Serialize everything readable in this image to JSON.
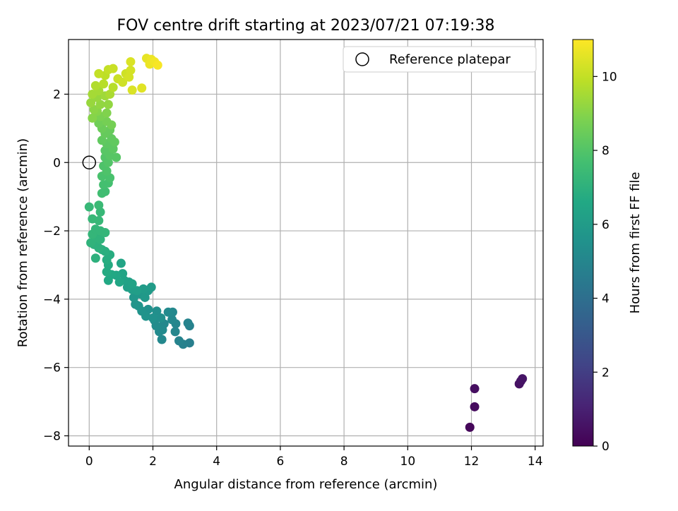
{
  "chart_data": {
    "type": "scatter",
    "title": "FOV centre drift starting at 2023/07/21 07:19:38",
    "xlabel": "Angular distance from reference (arcmin)",
    "ylabel": "Rotation from reference (arcmin)",
    "xlim": [
      -0.65,
      14.25
    ],
    "ylim": [
      -8.3,
      3.6
    ],
    "xticks": [
      0,
      2,
      4,
      6,
      8,
      10,
      12,
      14
    ],
    "yticks": [
      -8,
      -6,
      -4,
      -2,
      0,
      2
    ],
    "grid": true,
    "legend": {
      "position": "upper right",
      "entries": [
        "Reference platepar"
      ]
    },
    "reference_point": {
      "x": 0,
      "y": 0
    },
    "colorbar": {
      "label": "Hours from first FF file",
      "colormap": "viridis",
      "range": [
        0,
        11
      ],
      "ticks": [
        0,
        2,
        4,
        6,
        8,
        10
      ]
    },
    "points": [
      {
        "x": 11.95,
        "y": -7.75,
        "h": 0.2
      },
      {
        "x": 12.1,
        "y": -7.15,
        "h": 0.3
      },
      {
        "x": 12.1,
        "y": -6.62,
        "h": 0.4
      },
      {
        "x": 13.5,
        "y": -6.48,
        "h": 0.5
      },
      {
        "x": 13.55,
        "y": -6.4,
        "h": 0.55
      },
      {
        "x": 13.6,
        "y": -6.33,
        "h": 0.6
      },
      {
        "x": 3.15,
        "y": -5.28,
        "h": 4.7
      },
      {
        "x": 2.95,
        "y": -5.32,
        "h": 4.8
      },
      {
        "x": 2.82,
        "y": -5.22,
        "h": 4.9
      },
      {
        "x": 3.15,
        "y": -4.78,
        "h": 4.8
      },
      {
        "x": 3.1,
        "y": -4.7,
        "h": 4.9
      },
      {
        "x": 2.7,
        "y": -4.95,
        "h": 5.0
      },
      {
        "x": 2.72,
        "y": -4.72,
        "h": 5.0
      },
      {
        "x": 2.6,
        "y": -4.6,
        "h": 5.1
      },
      {
        "x": 2.62,
        "y": -4.38,
        "h": 5.1
      },
      {
        "x": 2.48,
        "y": -4.38,
        "h": 5.2
      },
      {
        "x": 2.35,
        "y": -4.72,
        "h": 5.1
      },
      {
        "x": 2.3,
        "y": -4.9,
        "h": 5.2
      },
      {
        "x": 2.28,
        "y": -5.18,
        "h": 5.1
      },
      {
        "x": 2.2,
        "y": -4.95,
        "h": 5.2
      },
      {
        "x": 2.1,
        "y": -4.78,
        "h": 5.3
      },
      {
        "x": 2.05,
        "y": -4.62,
        "h": 5.3
      },
      {
        "x": 2.12,
        "y": -4.35,
        "h": 5.4
      },
      {
        "x": 2.25,
        "y": -4.55,
        "h": 5.4
      },
      {
        "x": 2.0,
        "y": -4.55,
        "h": 5.5
      },
      {
        "x": 1.85,
        "y": -4.3,
        "h": 5.5
      },
      {
        "x": 1.78,
        "y": -4.5,
        "h": 5.6
      },
      {
        "x": 1.65,
        "y": -4.35,
        "h": 5.6
      },
      {
        "x": 1.55,
        "y": -4.2,
        "h": 5.7
      },
      {
        "x": 1.45,
        "y": -4.15,
        "h": 5.7
      },
      {
        "x": 1.4,
        "y": -3.95,
        "h": 5.8
      },
      {
        "x": 1.6,
        "y": -3.85,
        "h": 5.8
      },
      {
        "x": 1.75,
        "y": -3.95,
        "h": 5.9
      },
      {
        "x": 1.85,
        "y": -3.75,
        "h": 5.9
      },
      {
        "x": 1.95,
        "y": -3.65,
        "h": 6.0
      },
      {
        "x": 1.7,
        "y": -3.7,
        "h": 6.0
      },
      {
        "x": 1.5,
        "y": -3.75,
        "h": 6.1
      },
      {
        "x": 1.35,
        "y": -3.72,
        "h": 6.1
      },
      {
        "x": 1.2,
        "y": -3.65,
        "h": 6.2
      },
      {
        "x": 1.25,
        "y": -3.5,
        "h": 6.2
      },
      {
        "x": 1.1,
        "y": -3.45,
        "h": 6.3
      },
      {
        "x": 1.35,
        "y": -3.55,
        "h": 6.3
      },
      {
        "x": 1.05,
        "y": -3.25,
        "h": 6.4
      },
      {
        "x": 1.0,
        "y": -2.95,
        "h": 6.4
      },
      {
        "x": 0.95,
        "y": -3.5,
        "h": 6.5
      },
      {
        "x": 0.85,
        "y": -3.3,
        "h": 6.5
      },
      {
        "x": 0.7,
        "y": -3.28,
        "h": 6.6
      },
      {
        "x": 0.6,
        "y": -3.45,
        "h": 6.6
      },
      {
        "x": 0.55,
        "y": -3.2,
        "h": 6.7
      },
      {
        "x": 0.6,
        "y": -3.0,
        "h": 6.7
      },
      {
        "x": 0.55,
        "y": -2.85,
        "h": 6.8
      },
      {
        "x": 0.65,
        "y": -2.7,
        "h": 6.8
      },
      {
        "x": 0.5,
        "y": -2.6,
        "h": 6.9
      },
      {
        "x": 0.4,
        "y": -2.55,
        "h": 6.9
      },
      {
        "x": 0.2,
        "y": -2.8,
        "h": 7.0
      },
      {
        "x": 0.3,
        "y": -2.5,
        "h": 7.0
      },
      {
        "x": 0.15,
        "y": -2.4,
        "h": 7.0
      },
      {
        "x": 0.05,
        "y": -2.35,
        "h": 7.1
      },
      {
        "x": 0.2,
        "y": -2.2,
        "h": 7.1
      },
      {
        "x": 0.35,
        "y": -2.25,
        "h": 7.1
      },
      {
        "x": 0.1,
        "y": -2.1,
        "h": 7.2
      },
      {
        "x": 0.2,
        "y": -1.95,
        "h": 7.2
      },
      {
        "x": 0.35,
        "y": -2.0,
        "h": 7.2
      },
      {
        "x": 0.5,
        "y": -2.05,
        "h": 7.2
      },
      {
        "x": 0.1,
        "y": -1.65,
        "h": 7.3
      },
      {
        "x": 0.3,
        "y": -1.7,
        "h": 7.3
      },
      {
        "x": 0.35,
        "y": -1.45,
        "h": 7.3
      },
      {
        "x": 0.0,
        "y": -1.3,
        "h": 7.3
      },
      {
        "x": 0.3,
        "y": -1.25,
        "h": 7.4
      },
      {
        "x": 0.4,
        "y": -0.9,
        "h": 7.6
      },
      {
        "x": 0.5,
        "y": -0.85,
        "h": 7.6
      },
      {
        "x": 0.6,
        "y": -0.6,
        "h": 7.7
      },
      {
        "x": 0.45,
        "y": -0.65,
        "h": 7.7
      },
      {
        "x": 0.65,
        "y": -0.45,
        "h": 7.8
      },
      {
        "x": 0.4,
        "y": -0.4,
        "h": 7.8
      },
      {
        "x": 0.55,
        "y": -0.25,
        "h": 7.9
      },
      {
        "x": 0.45,
        "y": -0.1,
        "h": 7.9
      },
      {
        "x": 0.6,
        "y": 0.0,
        "h": 8.0
      },
      {
        "x": 0.5,
        "y": 0.15,
        "h": 8.0
      },
      {
        "x": 0.65,
        "y": 0.2,
        "h": 8.1
      },
      {
        "x": 0.5,
        "y": 0.35,
        "h": 8.1
      },
      {
        "x": 0.85,
        "y": 0.15,
        "h": 8.1
      },
      {
        "x": 0.75,
        "y": 0.4,
        "h": 8.2
      },
      {
        "x": 0.55,
        "y": 0.55,
        "h": 8.2
      },
      {
        "x": 0.7,
        "y": 0.7,
        "h": 8.3
      },
      {
        "x": 0.8,
        "y": 0.6,
        "h": 8.3
      },
      {
        "x": 0.4,
        "y": 0.65,
        "h": 8.3
      },
      {
        "x": 0.5,
        "y": 0.85,
        "h": 8.4
      },
      {
        "x": 0.65,
        "y": 0.95,
        "h": 8.4
      },
      {
        "x": 0.4,
        "y": 1.0,
        "h": 8.5
      },
      {
        "x": 0.3,
        "y": 1.15,
        "h": 8.6
      },
      {
        "x": 0.55,
        "y": 1.2,
        "h": 8.7
      },
      {
        "x": 0.7,
        "y": 1.1,
        "h": 8.7
      },
      {
        "x": 0.35,
        "y": 1.35,
        "h": 8.8
      },
      {
        "x": 0.55,
        "y": 1.45,
        "h": 8.9
      },
      {
        "x": 0.25,
        "y": 1.5,
        "h": 9.0
      },
      {
        "x": 0.1,
        "y": 1.3,
        "h": 9.0
      },
      {
        "x": 0.15,
        "y": 1.55,
        "h": 9.1
      },
      {
        "x": 0.35,
        "y": 1.7,
        "h": 9.2
      },
      {
        "x": 0.6,
        "y": 1.7,
        "h": 9.2
      },
      {
        "x": 0.05,
        "y": 1.75,
        "h": 9.3
      },
      {
        "x": 0.25,
        "y": 1.9,
        "h": 9.3
      },
      {
        "x": 0.5,
        "y": 1.95,
        "h": 9.4
      },
      {
        "x": 0.1,
        "y": 2.0,
        "h": 9.5
      },
      {
        "x": 0.3,
        "y": 2.1,
        "h": 9.5
      },
      {
        "x": 0.65,
        "y": 2.0,
        "h": 9.6
      },
      {
        "x": 0.2,
        "y": 2.25,
        "h": 9.7
      },
      {
        "x": 0.45,
        "y": 2.3,
        "h": 9.8
      },
      {
        "x": 0.75,
        "y": 2.2,
        "h": 9.8
      },
      {
        "x": 0.5,
        "y": 2.55,
        "h": 9.9
      },
      {
        "x": 0.3,
        "y": 2.6,
        "h": 10.0
      },
      {
        "x": 0.6,
        "y": 2.72,
        "h": 10.0
      },
      {
        "x": 0.75,
        "y": 2.75,
        "h": 10.1
      },
      {
        "x": 0.9,
        "y": 2.45,
        "h": 10.1
      },
      {
        "x": 1.05,
        "y": 2.35,
        "h": 10.2
      },
      {
        "x": 1.15,
        "y": 2.6,
        "h": 10.2
      },
      {
        "x": 1.25,
        "y": 2.5,
        "h": 10.3
      },
      {
        "x": 1.3,
        "y": 2.7,
        "h": 10.3
      },
      {
        "x": 1.3,
        "y": 2.95,
        "h": 10.4
      },
      {
        "x": 1.35,
        "y": 2.12,
        "h": 10.4
      },
      {
        "x": 1.65,
        "y": 2.18,
        "h": 10.5
      },
      {
        "x": 1.8,
        "y": 3.05,
        "h": 10.6
      },
      {
        "x": 1.95,
        "y": 3.02,
        "h": 10.7
      },
      {
        "x": 1.9,
        "y": 2.88,
        "h": 10.7
      },
      {
        "x": 2.05,
        "y": 2.95,
        "h": 10.8
      },
      {
        "x": 2.15,
        "y": 2.85,
        "h": 10.9
      }
    ]
  }
}
